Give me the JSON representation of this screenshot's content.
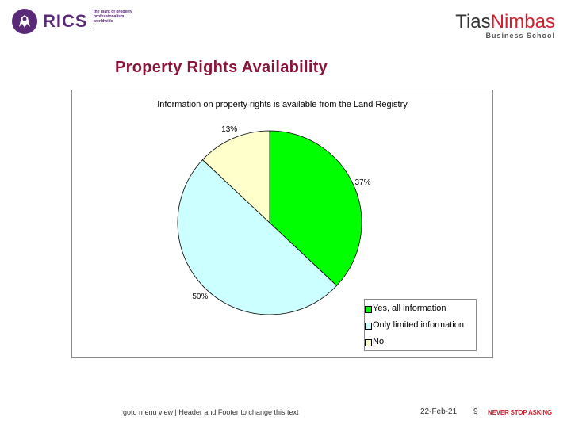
{
  "header": {
    "rics_name": "RICS",
    "rics_tagline": "the mark of property professionalism worldwide",
    "tias_name_part1": "Tias",
    "tias_name_part2": "Nimbas",
    "tias_sub": "Business School"
  },
  "slide": {
    "title": "Property Rights Availability"
  },
  "chart_data": {
    "type": "pie",
    "title": "Information on property rights is available from the Land Registry",
    "slices": [
      {
        "label": "Yes, all information",
        "value": 37,
        "color": "#00ff00",
        "pct_label": "37%"
      },
      {
        "label": "Only limited information",
        "value": 50,
        "color": "#ccffff",
        "pct_label": "50%"
      },
      {
        "label": "No",
        "value": 13,
        "color": "#ffffcc",
        "pct_label": "13%"
      }
    ],
    "legend_position": "bottom-right",
    "start_angle_deg": 0,
    "direction": "clockwise"
  },
  "footer": {
    "note": "goto menu view | Header and Footer to change this text",
    "date": "22-Feb-21",
    "page": "9",
    "slogan": "NEVER STOP ASKING"
  },
  "colors": {
    "title": "#8b1538",
    "rics": "#5a2a78",
    "tias_accent": "#d11f2d"
  }
}
